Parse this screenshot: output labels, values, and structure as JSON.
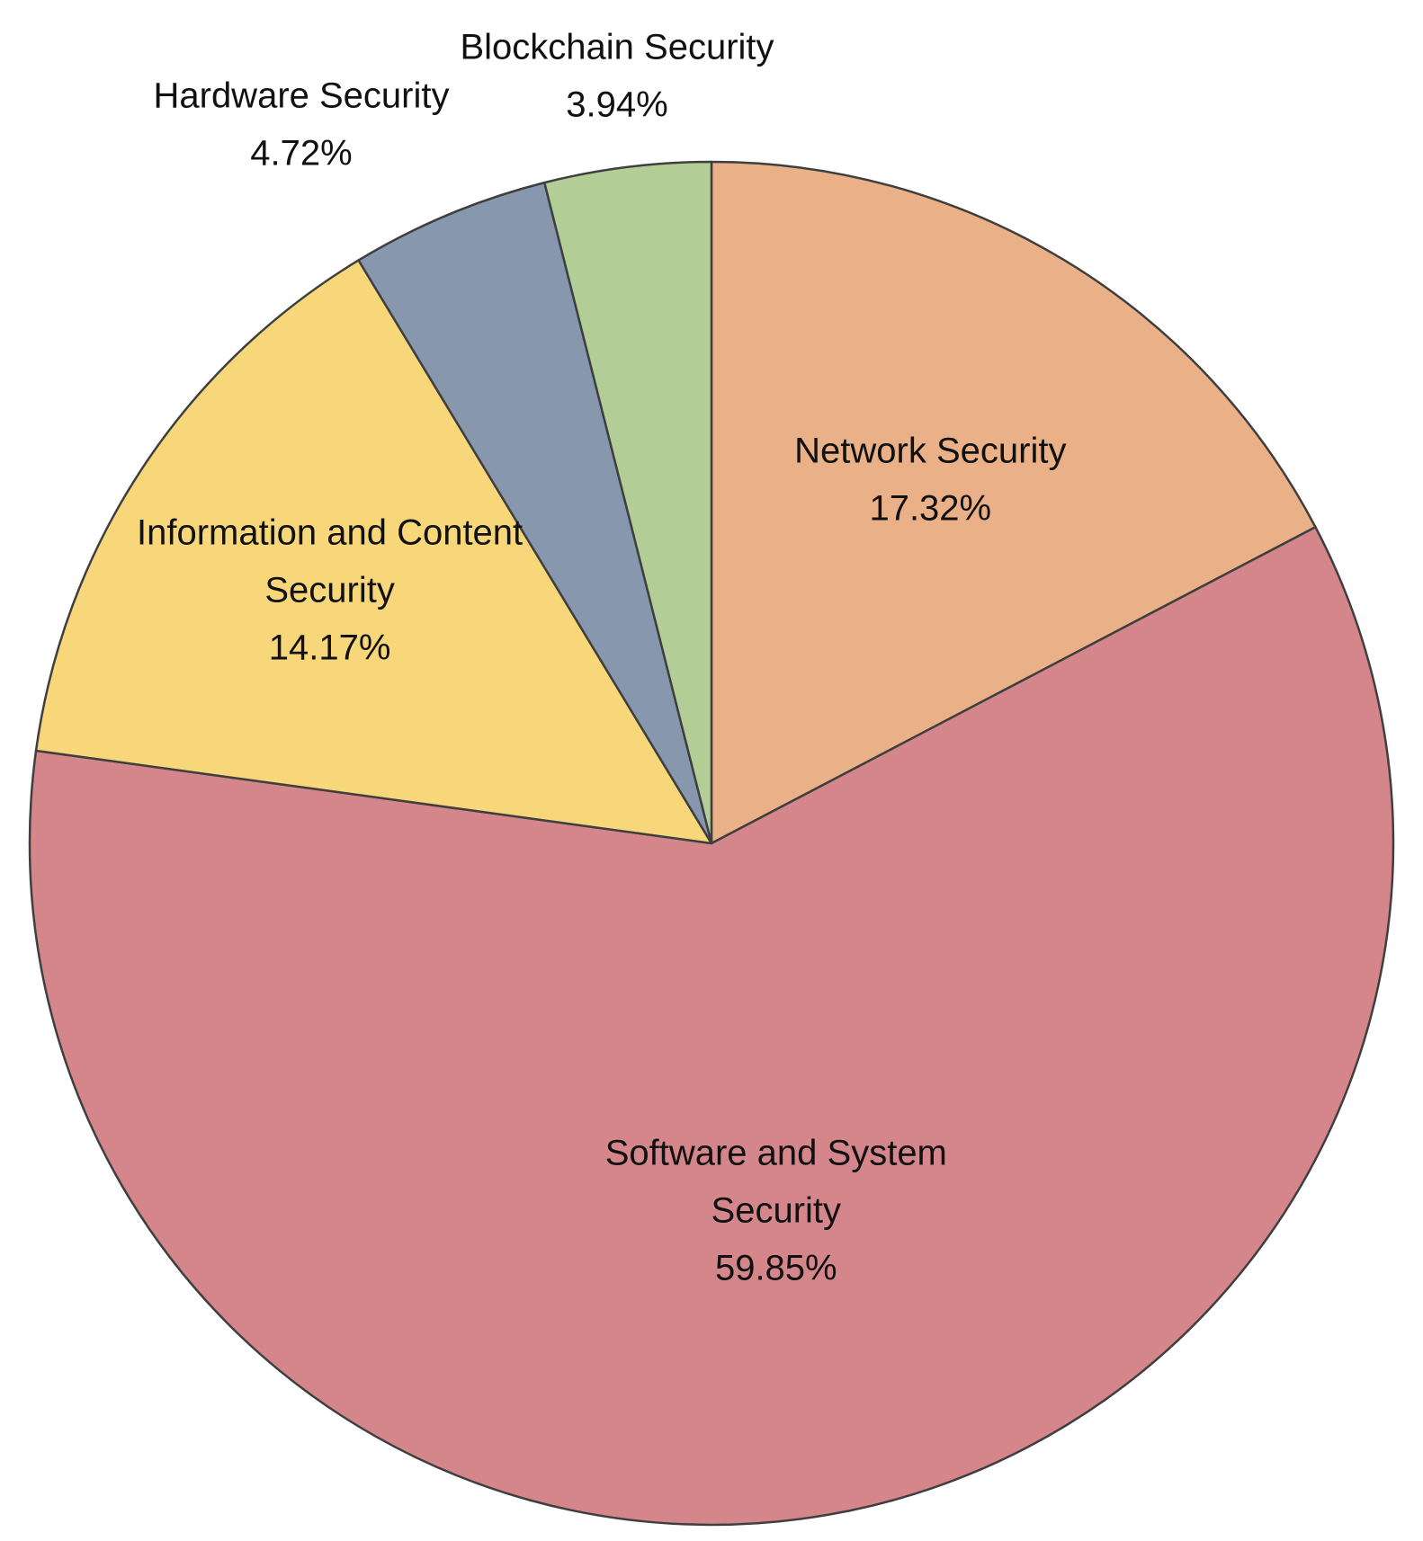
{
  "chart_data": {
    "type": "pie",
    "start_angle_deg": 90,
    "direction": "clockwise",
    "slices": [
      {
        "label": "Network Security",
        "value": 17.32,
        "value_label": "17.32%",
        "label_lines": [
          "Network Security",
          "17.32%"
        ],
        "color": "#EAB189",
        "label_placement": "inside"
      },
      {
        "label": "Software and System Security",
        "value": 59.85,
        "value_label": "59.85%",
        "label_lines": [
          "Software and System",
          "Security",
          "59.85%"
        ],
        "color": "#D5868A",
        "label_placement": "inside"
      },
      {
        "label": "Information and Content Security",
        "value": 14.17,
        "value_label": "14.17%",
        "label_lines": [
          "Information and Content",
          "Security",
          "14.17%"
        ],
        "color": "#F7D77A",
        "label_placement": "inside"
      },
      {
        "label": "Hardware Security",
        "value": 4.72,
        "value_label": "4.72%",
        "label_lines": [
          "Hardware Security",
          "4.72%"
        ],
        "color": "#8797AE",
        "label_placement": "outside"
      },
      {
        "label": "Blockchain Security",
        "value": 3.94,
        "value_label": "3.94%",
        "label_lines": [
          "Blockchain Security",
          "3.94%"
        ],
        "color": "#B2CE96",
        "label_placement": "outside"
      }
    ],
    "title": "",
    "legend": "none"
  }
}
